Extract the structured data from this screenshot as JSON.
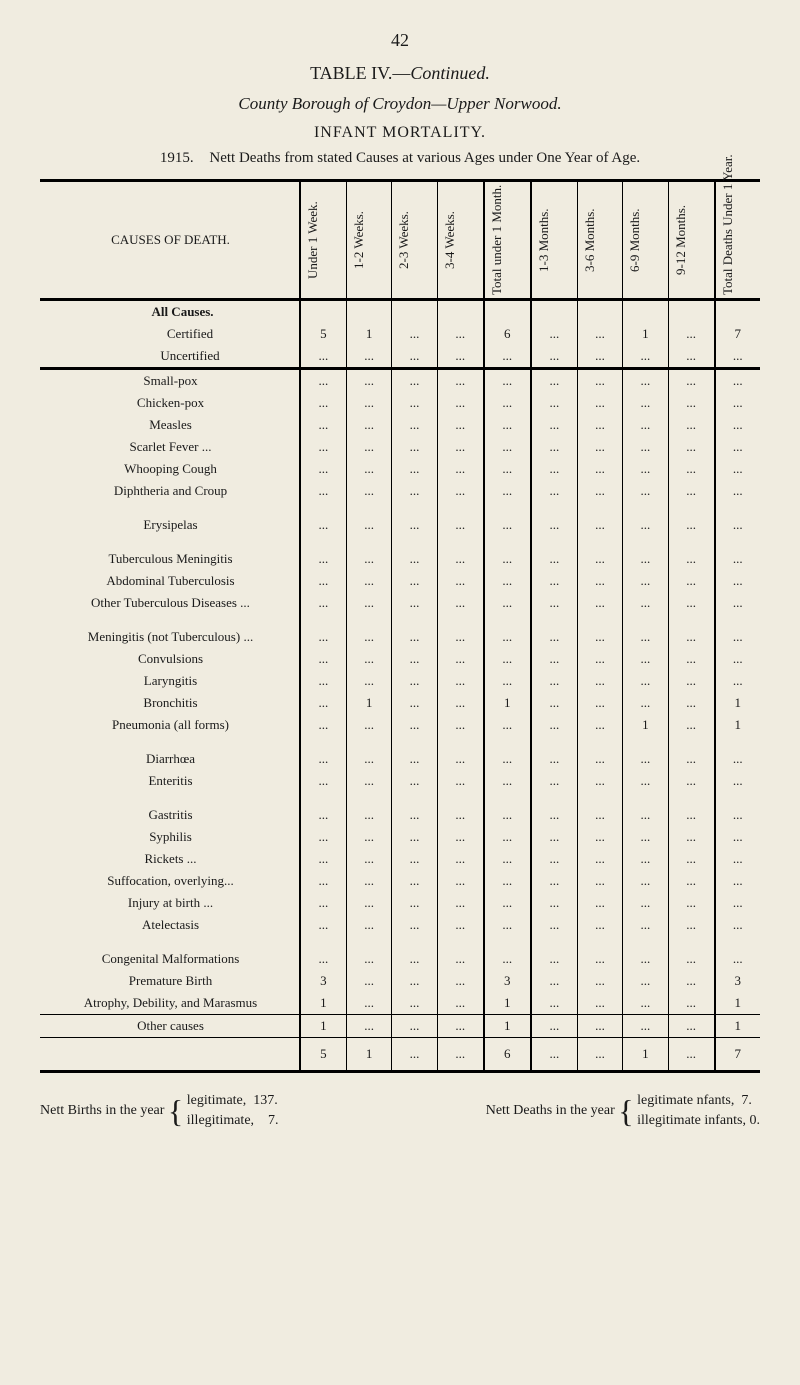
{
  "page_number": "42",
  "title_main": "TABLE IV.—",
  "title_cont": "Continued.",
  "subtitle": "County Borough of Croydon—Upper Norwood.",
  "section": "INFANT MORTALITY.",
  "desc_year": "1915.",
  "desc_text": "Nett Deaths from stated Causes at various Ages under One Year of Age.",
  "header_cause": "CAUSES OF DEATH.",
  "cols": [
    "Under 1 Week.",
    "1-2 Weeks.",
    "2-3 Weeks.",
    "3-4 Weeks.",
    "Total under 1 Month.",
    "1-3 Months.",
    "3-6 Months.",
    "6-9 Months.",
    "9-12 Months.",
    "Total Deaths Under 1 Year."
  ],
  "group_all": "All Causes.",
  "row_cert": {
    "label": "Certified",
    "v": [
      "5",
      "1",
      "...",
      "...",
      "6",
      "...",
      "...",
      "1",
      "...",
      "7"
    ]
  },
  "row_uncert": {
    "label": "Uncertified",
    "v": [
      "...",
      "...",
      "...",
      "...",
      "...",
      "...",
      "...",
      "...",
      "...",
      "..."
    ]
  },
  "rows_a": [
    {
      "label": "Small-pox",
      "v": [
        "...",
        "...",
        "...",
        "...",
        "...",
        "...",
        "...",
        "...",
        "...",
        "..."
      ]
    },
    {
      "label": "Chicken-pox",
      "v": [
        "...",
        "...",
        "...",
        "...",
        "...",
        "...",
        "...",
        "...",
        "...",
        "..."
      ]
    },
    {
      "label": "Measles",
      "v": [
        "...",
        "...",
        "...",
        "...",
        "...",
        "...",
        "...",
        "...",
        "...",
        "..."
      ]
    },
    {
      "label": "Scarlet Fever ...",
      "v": [
        "...",
        "...",
        "...",
        "...",
        "...",
        "...",
        "...",
        "...",
        "...",
        "..."
      ]
    },
    {
      "label": "Whooping Cough",
      "v": [
        "...",
        "...",
        "...",
        "...",
        "...",
        "...",
        "...",
        "...",
        "...",
        "..."
      ]
    },
    {
      "label": "Diphtheria and Croup",
      "v": [
        "...",
        "...",
        "...",
        "...",
        "...",
        "...",
        "...",
        "...",
        "...",
        "..."
      ]
    }
  ],
  "rows_b": [
    {
      "label": "Erysipelas",
      "v": [
        "...",
        "...",
        "...",
        "...",
        "...",
        "...",
        "...",
        "...",
        "...",
        "..."
      ]
    }
  ],
  "rows_c": [
    {
      "label": "Tuberculous Meningitis",
      "v": [
        "...",
        "...",
        "...",
        "...",
        "...",
        "...",
        "...",
        "...",
        "...",
        "..."
      ]
    },
    {
      "label": "Abdominal Tuberculosis",
      "v": [
        "...",
        "...",
        "...",
        "...",
        "...",
        "...",
        "...",
        "...",
        "...",
        "..."
      ]
    },
    {
      "label": "Other Tuberculous Diseases ...",
      "v": [
        "...",
        "...",
        "...",
        "...",
        "...",
        "...",
        "...",
        "...",
        "...",
        "..."
      ]
    }
  ],
  "rows_d": [
    {
      "label": "Meningitis (not Tuberculous) ...",
      "v": [
        "...",
        "...",
        "...",
        "...",
        "...",
        "...",
        "...",
        "...",
        "...",
        "..."
      ]
    },
    {
      "label": "Convulsions",
      "v": [
        "...",
        "...",
        "...",
        "...",
        "...",
        "...",
        "...",
        "...",
        "...",
        "..."
      ]
    },
    {
      "label": "Laryngitis",
      "v": [
        "...",
        "...",
        "...",
        "...",
        "...",
        "...",
        "...",
        "...",
        "...",
        "..."
      ]
    },
    {
      "label": "Bronchitis",
      "v": [
        "...",
        "1",
        "...",
        "...",
        "1",
        "...",
        "...",
        "...",
        "...",
        "1"
      ]
    },
    {
      "label": "Pneumonia (all forms)",
      "v": [
        "...",
        "...",
        "...",
        "...",
        "...",
        "...",
        "...",
        "1",
        "...",
        "1"
      ]
    }
  ],
  "rows_e": [
    {
      "label": "Diarrhœa",
      "v": [
        "...",
        "...",
        "...",
        "...",
        "...",
        "...",
        "...",
        "...",
        "...",
        "..."
      ]
    },
    {
      "label": "Enteritis",
      "v": [
        "...",
        "...",
        "...",
        "...",
        "...",
        "...",
        "...",
        "...",
        "...",
        "..."
      ]
    }
  ],
  "rows_f": [
    {
      "label": "Gastritis",
      "v": [
        "...",
        "...",
        "...",
        "...",
        "...",
        "...",
        "...",
        "...",
        "...",
        "..."
      ]
    },
    {
      "label": "Syphilis",
      "v": [
        "...",
        "...",
        "...",
        "...",
        "...",
        "...",
        "...",
        "...",
        "...",
        "..."
      ]
    },
    {
      "label": "Rickets ...",
      "v": [
        "...",
        "...",
        "...",
        "...",
        "...",
        "...",
        "...",
        "...",
        "...",
        "..."
      ]
    },
    {
      "label": "Suffocation, overlying...",
      "v": [
        "...",
        "...",
        "...",
        "...",
        "...",
        "...",
        "...",
        "...",
        "...",
        "..."
      ]
    },
    {
      "label": "Injury at birth ...",
      "v": [
        "...",
        "...",
        "...",
        "...",
        "...",
        "...",
        "...",
        "...",
        "...",
        "..."
      ]
    },
    {
      "label": "Atelectasis",
      "v": [
        "...",
        "...",
        "...",
        "...",
        "...",
        "...",
        "...",
        "...",
        "...",
        "..."
      ]
    }
  ],
  "rows_g": [
    {
      "label": "Congenital Malformations",
      "v": [
        "...",
        "...",
        "...",
        "...",
        "...",
        "...",
        "...",
        "...",
        "...",
        "..."
      ]
    },
    {
      "label": "Premature Birth",
      "v": [
        "3",
        "...",
        "...",
        "...",
        "3",
        "...",
        "...",
        "...",
        "...",
        "3"
      ]
    },
    {
      "label": "Atrophy, Debility, and Marasmus",
      "v": [
        "1",
        "...",
        "...",
        "...",
        "1",
        "...",
        "...",
        "...",
        "...",
        "1"
      ]
    }
  ],
  "row_other": {
    "label": "Other causes",
    "v": [
      "1",
      "...",
      "...",
      "...",
      "1",
      "...",
      "...",
      "...",
      "...",
      "1"
    ]
  },
  "row_total": {
    "v": [
      "5",
      "1",
      "...",
      "...",
      "6",
      "...",
      "...",
      "1",
      "...",
      "7"
    ]
  },
  "footer_left_label": "Nett Births in the year",
  "footer_left_leg": "legitimate,",
  "footer_left_leg_n": "137.",
  "footer_left_ill": "illegitimate,",
  "footer_left_ill_n": "7.",
  "footer_mid": "Nett Deaths in the year",
  "footer_right_leg": "legitimate nfants,",
  "footer_right_leg_n": "7.",
  "footer_right_ill": "illegitimate infants,",
  "footer_right_ill_n": "0."
}
